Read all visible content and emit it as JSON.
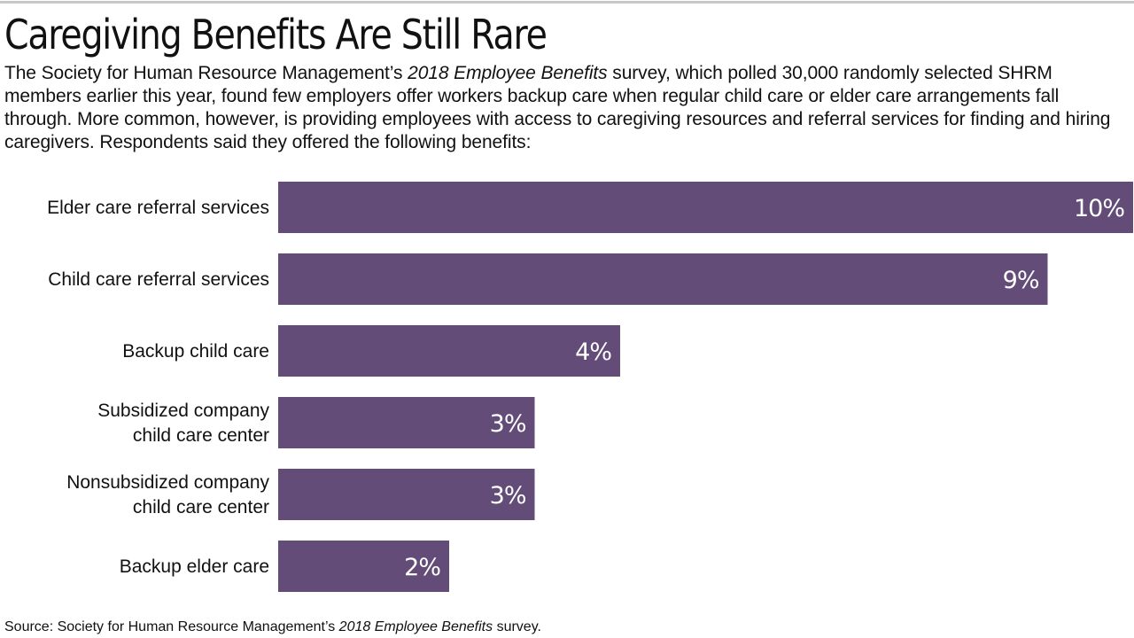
{
  "header": {
    "title": "Caregiving Benefits Are Still Rare",
    "intro_before": "The Society for Human Resource Management’s ",
    "intro_italic": "2018 Employee Benefits",
    "intro_after": " survey, which polled 30,000 randomly selected SHRM members earlier this year, found few employers offer workers backup care when regular child care or elder care arrangements fall through. More common, however, is providing employees with access to caregiving resources and referral services for finding and hiring caregivers. Respondents said they offered the following benefits:"
  },
  "footer": {
    "source_before": "Source: Society for Human Resource Management’s ",
    "source_italic": "2018 Employee Benefits",
    "source_after": " survey."
  },
  "colors": {
    "bar": "#634c78",
    "bar_label": "#ffffff",
    "text": "#111111",
    "rule": "#c8c8c8"
  },
  "chart_data": {
    "type": "bar",
    "orientation": "horizontal",
    "categories": [
      [
        "Elder care referral services"
      ],
      [
        "Child care referral services"
      ],
      [
        "Backup child care"
      ],
      [
        "Subsidized company",
        "child care center"
      ],
      [
        "Nonsubsidized company",
        "child care center"
      ],
      [
        "Backup elder care"
      ]
    ],
    "values": [
      10,
      9,
      4,
      3,
      3,
      2
    ],
    "value_labels": [
      "10%",
      "9%",
      "4%",
      "3%",
      "3%",
      "2%"
    ],
    "unit": "%",
    "xlim": [
      0,
      10
    ],
    "grid": false,
    "legend": "none"
  }
}
